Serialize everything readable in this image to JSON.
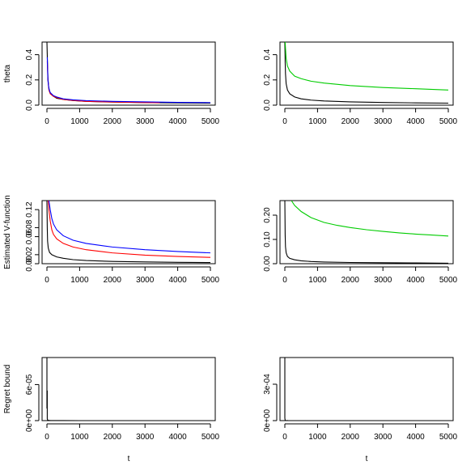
{
  "chart_data": [
    {
      "type": "line",
      "panel": "top-left",
      "ylabel": "theta",
      "xlabel": "",
      "xlim": [
        0,
        5000
      ],
      "ylim": [
        0,
        0.5
      ],
      "xticks": [
        0,
        1000,
        2000,
        3000,
        4000,
        5000
      ],
      "yticks": [
        0.0,
        0.2,
        0.4
      ],
      "ytick_labels": [
        "0.0",
        "0.2",
        "0.4"
      ],
      "series": [
        {
          "color": "#000000",
          "x": [
            0,
            10,
            20,
            30,
            50,
            80,
            120,
            200,
            300,
            500,
            800,
            1200,
            2000,
            3000,
            4000,
            5000
          ],
          "y": [
            0.5,
            0.4,
            0.3,
            0.22,
            0.15,
            0.11,
            0.09,
            0.07,
            0.055,
            0.045,
            0.036,
            0.03,
            0.024,
            0.02,
            0.018,
            0.016
          ]
        },
        {
          "color": "#ff0000",
          "x": [
            10,
            30,
            60,
            100,
            200,
            300,
            500,
            800,
            1200,
            2000,
            3000,
            3450
          ],
          "y": [
            0.35,
            0.2,
            0.12,
            0.09,
            0.07,
            0.06,
            0.045,
            0.037,
            0.03,
            0.025,
            0.02,
            0.019
          ]
        },
        {
          "color": "#0000ff",
          "x": [
            10,
            30,
            60,
            100,
            200,
            300,
            500,
            800,
            1200,
            2000,
            3000,
            4000,
            5000
          ],
          "y": [
            0.38,
            0.2,
            0.13,
            0.1,
            0.075,
            0.065,
            0.05,
            0.042,
            0.036,
            0.03,
            0.026,
            0.022,
            0.02
          ]
        }
      ]
    },
    {
      "type": "line",
      "panel": "top-right",
      "ylabel": "",
      "xlabel": "",
      "xlim": [
        0,
        5000
      ],
      "ylim": [
        0,
        0.5
      ],
      "xticks": [
        0,
        1000,
        2000,
        3000,
        4000,
        5000
      ],
      "yticks": [
        0.0,
        0.2,
        0.4
      ],
      "ytick_labels": [
        "0.0",
        "0.2",
        "0.4"
      ],
      "series": [
        {
          "color": "#000000",
          "x": [
            0,
            10,
            20,
            40,
            80,
            150,
            300,
            500,
            800,
            1200,
            2000,
            3000,
            4000,
            5000
          ],
          "y": [
            0.5,
            0.35,
            0.25,
            0.17,
            0.12,
            0.09,
            0.065,
            0.05,
            0.04,
            0.033,
            0.026,
            0.021,
            0.018,
            0.016
          ]
        },
        {
          "color": "#00cc00",
          "x": [
            0,
            10,
            20,
            40,
            80,
            150,
            300,
            500,
            800,
            1200,
            2000,
            3000,
            4000,
            5000
          ],
          "y": [
            0.5,
            0.5,
            0.45,
            0.37,
            0.31,
            0.27,
            0.23,
            0.21,
            0.19,
            0.175,
            0.155,
            0.14,
            0.13,
            0.12
          ]
        }
      ]
    },
    {
      "type": "line",
      "panel": "middle-left",
      "ylabel": "Estimated V-function",
      "xlabel": "",
      "xlim": [
        0,
        5000
      ],
      "ylim": [
        0,
        0.14
      ],
      "xticks": [
        0,
        1000,
        2000,
        3000,
        4000,
        5000
      ],
      "yticks": [
        0.0,
        0.02,
        0.06,
        0.08,
        0.12
      ],
      "ytick_labels": [
        "0.00",
        "0.02",
        "0.06",
        "0.08",
        "0.12"
      ],
      "series": [
        {
          "color": "#000000",
          "x": [
            0,
            10,
            20,
            40,
            80,
            150,
            300,
            500,
            800,
            1200,
            2000,
            3000,
            4000,
            5000
          ],
          "y": [
            0.14,
            0.08,
            0.05,
            0.035,
            0.025,
            0.02,
            0.015,
            0.012,
            0.009,
            0.007,
            0.005,
            0.004,
            0.003,
            0.0025
          ]
        },
        {
          "color": "#ff0000",
          "x": [
            40,
            60,
            100,
            150,
            200,
            300,
            500,
            800,
            1200,
            2000,
            3000,
            4000,
            5000
          ],
          "y": [
            0.14,
            0.12,
            0.095,
            0.075,
            0.065,
            0.055,
            0.045,
            0.037,
            0.031,
            0.024,
            0.019,
            0.016,
            0.014
          ]
        },
        {
          "color": "#0000ff",
          "x": [
            60,
            100,
            150,
            200,
            300,
            500,
            800,
            1200,
            2000,
            3000,
            4000,
            5000
          ],
          "y": [
            0.14,
            0.12,
            0.1,
            0.088,
            0.075,
            0.062,
            0.052,
            0.045,
            0.037,
            0.031,
            0.027,
            0.024
          ]
        }
      ]
    },
    {
      "type": "line",
      "panel": "middle-right",
      "ylabel": "",
      "xlabel": "",
      "xlim": [
        0,
        5000
      ],
      "ylim": [
        0,
        0.26
      ],
      "xticks": [
        0,
        1000,
        2000,
        3000,
        4000,
        5000
      ],
      "yticks": [
        0.0,
        0.1,
        0.2
      ],
      "ytick_labels": [
        "0.00",
        "0.10",
        "0.20"
      ],
      "series": [
        {
          "color": "#000000",
          "x": [
            0,
            10,
            20,
            40,
            80,
            150,
            300,
            500,
            800,
            1200,
            2000,
            3000,
            4000,
            5000
          ],
          "y": [
            0.26,
            0.12,
            0.07,
            0.045,
            0.03,
            0.022,
            0.016,
            0.012,
            0.009,
            0.007,
            0.005,
            0.004,
            0.003,
            0.002
          ]
        },
        {
          "color": "#00cc00",
          "x": [
            200,
            300,
            500,
            800,
            1200,
            1600,
            2000,
            2500,
            3000,
            3500,
            4000,
            4500,
            5000
          ],
          "y": [
            0.26,
            0.24,
            0.215,
            0.19,
            0.17,
            0.158,
            0.149,
            0.14,
            0.133,
            0.127,
            0.122,
            0.118,
            0.114
          ]
        }
      ]
    },
    {
      "type": "line",
      "panel": "bottom-left",
      "ylabel": "Regret bound",
      "xlabel": "t",
      "xlim": [
        0,
        5000
      ],
      "ylim": [
        0,
        0.000105
      ],
      "xticks": [
        0,
        1000,
        2000,
        3000,
        4000,
        5000
      ],
      "yticks": [
        0,
        6e-05
      ],
      "ytick_labels": [
        "0e+00",
        "6e-05"
      ],
      "series": [
        {
          "color": "#000000",
          "x": [
            0,
            0,
            10,
            10,
            20,
            20,
            30,
            50,
            100,
            500,
            1000,
            5000
          ],
          "y": [
            0.000105,
            2e-05,
            5e-05,
            3e-06,
            1.5e-06,
            1e-06,
            8e-07,
            5e-07,
            2e-07,
            5e-08,
            2e-08,
            1e-08
          ]
        }
      ]
    },
    {
      "type": "line",
      "panel": "bottom-right",
      "ylabel": "",
      "xlabel": "t",
      "xlim": [
        0,
        5000
      ],
      "ylim": [
        0,
        0.00052
      ],
      "xticks": [
        0,
        1000,
        2000,
        3000,
        4000,
        5000
      ],
      "yticks": [
        0,
        0.0003
      ],
      "ytick_labels": [
        "0e+00",
        "3e-04"
      ],
      "series": [
        {
          "color": "#000000",
          "x": [
            0,
            0,
            10,
            20,
            50,
            100,
            500,
            1000,
            5000
          ],
          "y": [
            0.00052,
            2e-05,
            3e-06,
            1e-06,
            5e-07,
            2e-07,
            5e-08,
            2e-08,
            1e-08
          ]
        }
      ]
    }
  ]
}
